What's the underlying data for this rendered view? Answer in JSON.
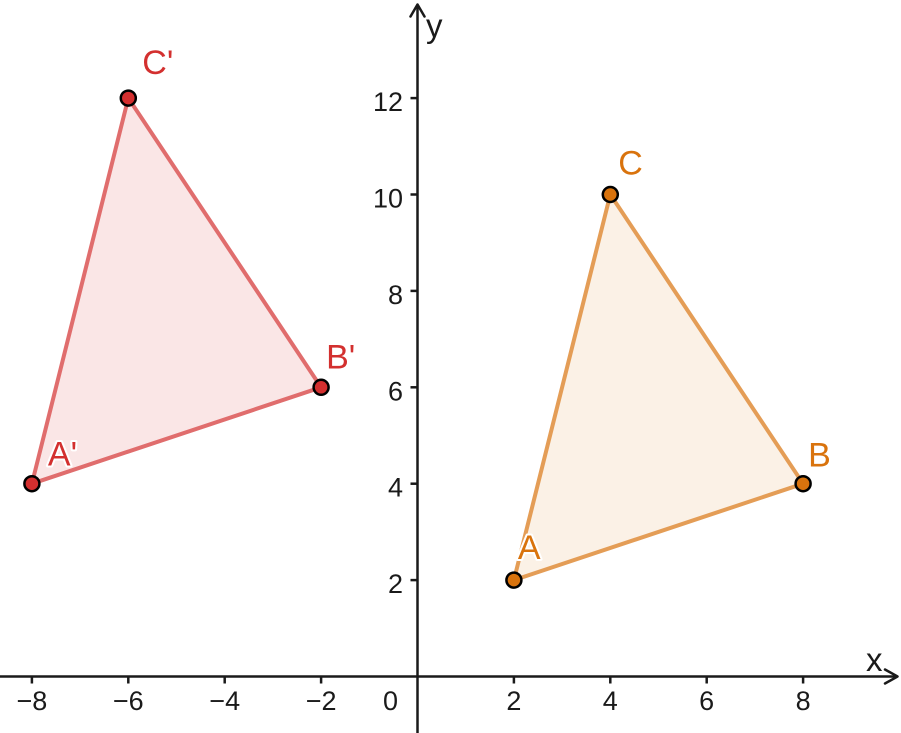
{
  "figure": {
    "background_color": "#ffffff",
    "axis_color": "#1a1a1a"
  },
  "chart_data": {
    "type": "scatter",
    "title": "",
    "xlabel": "x",
    "ylabel": "y",
    "origin_label": "0",
    "xlim": [
      -8.7,
      10.0
    ],
    "ylim": [
      -1.2,
      14.0
    ],
    "x_ticks": [
      -8,
      -6,
      -4,
      -2,
      2,
      4,
      6,
      8
    ],
    "y_ticks": [
      2,
      4,
      6,
      8,
      10,
      12
    ],
    "grid": false,
    "series": [
      {
        "name": "triangle A'B'C'",
        "slug": "triangle-a-prime-b-prime-c-prime",
        "stroke_color": "#e06d6d",
        "fill_color": "rgba(211,47,47,0.12)",
        "point_color": "#d32f2f",
        "label_color": "#d3302f",
        "points": [
          {
            "label": "A'",
            "x": -8,
            "y": 4,
            "label_dx": 16,
            "label_dy": -18
          },
          {
            "label": "B'",
            "x": -2,
            "y": 6,
            "label_dx": 5,
            "label_dy": -19
          },
          {
            "label": "C'",
            "x": -6,
            "y": 12,
            "label_dx": 14,
            "label_dy": -24
          }
        ]
      },
      {
        "name": "triangle ABC",
        "slug": "triangle-abc",
        "stroke_color": "#e49d56",
        "fill_color": "rgba(217,115,13,0.10)",
        "point_color": "#d9730d",
        "label_color": "#d9730d",
        "points": [
          {
            "label": "A",
            "x": 2,
            "y": 2,
            "label_dx": 4,
            "label_dy": -21
          },
          {
            "label": "B",
            "x": 8,
            "y": 4,
            "label_dx": 5,
            "label_dy": -17
          },
          {
            "label": "C",
            "x": 4,
            "y": 10,
            "label_dx": 8,
            "label_dy": -20
          }
        ]
      }
    ]
  }
}
